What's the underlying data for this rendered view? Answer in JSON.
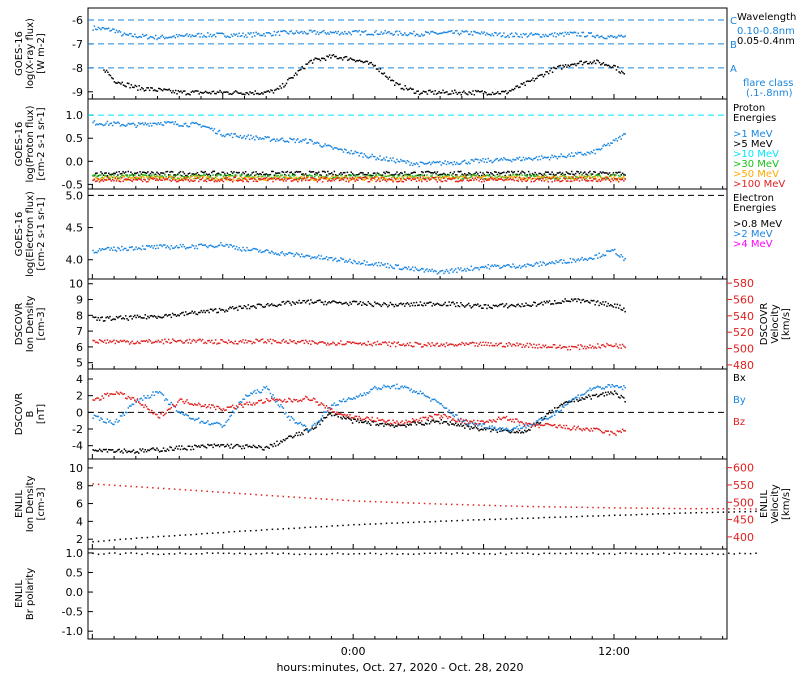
{
  "footer": {
    "xlabel": "hours:minutes, Oct. 27, 2020 - Oct. 28, 2020"
  },
  "colors": {
    "black": "#000000",
    "blue": "#1a86e0",
    "cyan": "#00e8ff",
    "green": "#17c017",
    "orange": "#ffaa00",
    "red": "#e02020",
    "magenta": "#ff00ff"
  },
  "chart_data": [
    {
      "id": "xray",
      "type": "scatter",
      "ylabel": [
        "GOES-16",
        "log(X-ray flux)",
        "[W m-2]"
      ],
      "ylim": [
        -9.3,
        -5.5
      ],
      "ticks": [
        -9,
        -8,
        -7,
        -6
      ],
      "tick_labels": [
        "-9",
        "-8",
        "-7",
        "-6"
      ],
      "legend_title": "Wavelength",
      "legend": [
        {
          "label": "0.10-0.8nm",
          "color": "#1a86e0"
        },
        {
          "label": "0.05-0.4nm",
          "color": "#000000"
        }
      ],
      "flare_class": {
        "title": "flare class",
        "range": "(.1-.8nm)",
        "levels": [
          {
            "label": "C",
            "value": -6
          },
          {
            "label": "B",
            "value": -7
          },
          {
            "label": "A",
            "value": -8
          }
        ]
      },
      "series": [
        {
          "color": "#1a86e0",
          "x": [
            -12,
            -11,
            -10.6,
            -9,
            -7,
            -5,
            -3,
            -1,
            1,
            3,
            5,
            7,
            9,
            10,
            11,
            12,
            12.5
          ],
          "y": [
            -6.3,
            -6.4,
            -6.6,
            -6.7,
            -6.6,
            -6.6,
            -6.5,
            -6.5,
            -6.5,
            -6.55,
            -6.5,
            -6.6,
            -6.6,
            -6.55,
            -6.6,
            -6.7,
            -6.7
          ]
        },
        {
          "color": "#000000",
          "x": [
            -11.5,
            -11,
            -10,
            -8,
            -6,
            -4,
            -3.5,
            -2,
            -1,
            0,
            1,
            2,
            3,
            4,
            5,
            6,
            7,
            8,
            9,
            10,
            11,
            12,
            12.5
          ],
          "y": [
            -8,
            -8.5,
            -8.8,
            -9,
            -9,
            -9,
            -8.9,
            -7.7,
            -7.5,
            -7.6,
            -7.9,
            -8.7,
            -9,
            -9,
            -9,
            -9,
            -9,
            -8.6,
            -8.1,
            -7.8,
            -7.7,
            -7.9,
            -8.3
          ]
        }
      ]
    },
    {
      "id": "proton",
      "type": "scatter",
      "ylabel": [
        "GOES-16",
        "log(Proton flux)",
        "[cm-2 s-1 sr-1]"
      ],
      "ylim": [
        -0.6,
        1.35
      ],
      "ticks": [
        -0.5,
        0,
        0.5,
        1
      ],
      "tick_labels": [
        "-0.5",
        "0.0",
        "0.5",
        "1.0"
      ],
      "ref_line": {
        "value": 1.0,
        "color": "#00e8ff"
      },
      "legend_title": "Proton Energies",
      "legend": [
        {
          "label": ">1 MeV",
          "color": "#1a86e0"
        },
        {
          "label": ">5 MeV",
          "color": "#000000"
        },
        {
          "label": ">10 MeV",
          "color": "#00e8ff"
        },
        {
          "label": ">30 MeV",
          "color": "#17c017"
        },
        {
          "label": ">50 MeV",
          "color": "#ffaa00"
        },
        {
          "label": ">100 MeV",
          "color": "#e02020"
        }
      ],
      "series": [
        {
          "color": "#1a86e0",
          "x": [
            -12,
            -10,
            -9,
            -7,
            -6,
            -4,
            -2,
            -1,
            1,
            3,
            5,
            7,
            9,
            11,
            12,
            12.5
          ],
          "y": [
            0.85,
            0.8,
            0.85,
            0.8,
            0.6,
            0.5,
            0.45,
            0.3,
            0.1,
            -0.05,
            0,
            0.05,
            0.1,
            0.2,
            0.45,
            0.6
          ]
        },
        {
          "color": "#000000",
          "x": [
            -12,
            12.5
          ],
          "y": [
            -0.25,
            -0.25
          ]
        },
        {
          "color": "#17c017",
          "x": [
            -12,
            12.5
          ],
          "y": [
            -0.32,
            -0.32
          ]
        },
        {
          "color": "#ffaa00",
          "x": [
            -12,
            12.5
          ],
          "y": [
            -0.35,
            -0.35
          ]
        },
        {
          "color": "#e02020",
          "x": [
            -12,
            12.5
          ],
          "y": [
            -0.38,
            -0.38
          ]
        }
      ]
    },
    {
      "id": "electron",
      "type": "scatter",
      "ylabel": [
        "GOES-16",
        "log(Electron flux)",
        "[cm-2 s-1 sr-1]"
      ],
      "ylim": [
        3.7,
        5.1
      ],
      "ticks": [
        4,
        4.5,
        5
      ],
      "tick_labels": [
        "4.0",
        "4.5",
        "5.0"
      ],
      "ref_line": {
        "value": 5.0,
        "color": "#000000"
      },
      "legend_title": "Electron Energies",
      "legend": [
        {
          "label": ">0.8 MeV",
          "color": "#000000"
        },
        {
          "label": ">2 MeV",
          "color": "#1a86e0"
        },
        {
          "label": ">4 MeV",
          "color": "#ff00ff"
        }
      ],
      "series": [
        {
          "color": "#1a86e0",
          "x": [
            -12,
            -10,
            -7,
            -6,
            -5,
            -3,
            -1,
            1,
            3,
            4,
            6,
            8,
            10,
            11,
            12,
            12.5
          ],
          "y": [
            4.15,
            4.2,
            4.22,
            4.25,
            4.17,
            4.1,
            4.02,
            3.95,
            3.85,
            3.82,
            3.9,
            3.92,
            4.0,
            4.05,
            4.15,
            4.0
          ]
        }
      ]
    },
    {
      "id": "dscovr_density",
      "type": "scatter",
      "ylabel": [
        "DSCOVR",
        "Ion Density",
        "[cm-3]"
      ],
      "ylim": [
        4.6,
        10.3
      ],
      "ticks": [
        5,
        6,
        7,
        8,
        9,
        10
      ],
      "tick_labels": [
        "5",
        "6",
        "7",
        "8",
        "9",
        "10"
      ],
      "ylabel2": [
        "DSCOVR",
        "Velocity",
        "[km/s]"
      ],
      "ylim2": [
        475,
        585
      ],
      "ticks2": [
        480,
        500,
        520,
        540,
        560,
        580
      ],
      "tick_labels2": [
        "480",
        "500",
        "520",
        "540",
        "560",
        "580"
      ],
      "series": [
        {
          "axis": 1,
          "color": "#000000",
          "x": [
            -12,
            -10,
            -8,
            -6,
            -4,
            -2,
            0,
            2,
            4,
            6,
            8,
            10,
            12,
            12.5
          ],
          "y": [
            7.8,
            7.9,
            8.1,
            8.4,
            8.7,
            8.9,
            8.8,
            8.7,
            8.8,
            8.6,
            8.7,
            9.0,
            8.7,
            8.4
          ]
        },
        {
          "axis": 2,
          "color": "#e02020",
          "x": [
            -12,
            -10,
            -8,
            -6,
            -4,
            -2,
            0,
            2,
            4,
            6,
            8,
            10,
            12,
            12.5
          ],
          "y": [
            510,
            509,
            510,
            509,
            510,
            508,
            508,
            506,
            505,
            506,
            505,
            502,
            505,
            503
          ]
        }
      ]
    },
    {
      "id": "dscovr_b",
      "type": "scatter",
      "ylabel": [
        "DSCOVR",
        "B",
        "[nT]"
      ],
      "ylim": [
        -5.6,
        5.2
      ],
      "ticks": [
        -4,
        -2,
        0,
        2,
        4
      ],
      "tick_labels": [
        "-4",
        "-2",
        "0",
        "2",
        "4"
      ],
      "ref_line": {
        "value": 0,
        "color": "#000000"
      },
      "legend": [
        {
          "label": "Bx",
          "color": "#000000"
        },
        {
          "label": "By",
          "color": "#1a86e0"
        },
        {
          "label": "Bz",
          "color": "#e02020"
        }
      ],
      "series": [
        {
          "color": "#000000",
          "x": [
            -12,
            -10,
            -8,
            -6,
            -4,
            -3,
            -2,
            -1,
            0,
            2,
            4,
            6,
            8,
            9,
            10,
            11,
            12,
            12.5
          ],
          "y": [
            -4.3,
            -4.6,
            -4.2,
            -3.9,
            -4.2,
            -3.0,
            -2.0,
            0,
            -1,
            -1.5,
            -1.0,
            -2.0,
            -2.2,
            0,
            1.5,
            2.0,
            2.5,
            1.5
          ]
        },
        {
          "color": "#1a86e0",
          "x": [
            -12,
            -11,
            -10,
            -9,
            -8,
            -7,
            -6,
            -5,
            -4,
            -3,
            -2,
            -1,
            0,
            1,
            2,
            3,
            4,
            5,
            6,
            7,
            8,
            9,
            10,
            11,
            12,
            12.5
          ],
          "y": [
            -0.5,
            -1.2,
            1.5,
            2.5,
            0,
            -1,
            -1.5,
            2,
            3,
            -0.5,
            -2,
            1,
            1.8,
            3,
            3.2,
            2.5,
            1,
            -1,
            -1.5,
            -2,
            -1.5,
            -0.5,
            1.5,
            3,
            3.2,
            3
          ]
        },
        {
          "color": "#e02020",
          "x": [
            -12,
            -11,
            -10,
            -9,
            -8,
            -7,
            -6,
            -5,
            -4,
            -3,
            -2,
            -1,
            0,
            1,
            2,
            3,
            4,
            5,
            6,
            7,
            8,
            9,
            10,
            11,
            12,
            12.5
          ],
          "y": [
            1.5,
            2.5,
            1.5,
            -0.5,
            1.5,
            1,
            0.5,
            1,
            1.5,
            1.5,
            1.8,
            0.2,
            -0.5,
            -0.8,
            -1.2,
            -0.8,
            -0.3,
            -1,
            -1.2,
            -0.5,
            -1.5,
            -1.5,
            -1.8,
            -2,
            -2.5,
            -2
          ]
        }
      ]
    },
    {
      "id": "enlil_density",
      "type": "scatter",
      "ylabel": [
        "ENLIL",
        "Ion Density",
        "[cm-3]"
      ],
      "ylim": [
        0.9,
        11
      ],
      "ticks": [
        2,
        4,
        6,
        8,
        10
      ],
      "tick_labels": [
        "2",
        "4",
        "6",
        "8",
        "10"
      ],
      "ylabel2": [
        "ENLIL",
        "Velocity",
        "[km/s]"
      ],
      "ylim2": [
        365,
        625
      ],
      "ticks2": [
        400,
        450,
        500,
        550,
        600
      ],
      "tick_labels2": [
        "400",
        "450",
        "500",
        "550",
        "600"
      ],
      "series": [
        {
          "axis": 1,
          "color": "#000000",
          "x": [
            -12,
            -10,
            -5,
            0,
            5,
            10,
            15,
            18.5
          ],
          "y": [
            1.8,
            2.2,
            3.0,
            3.7,
            4.2,
            4.6,
            5.0,
            5.2
          ]
        },
        {
          "axis": 2,
          "color": "#e02020",
          "x": [
            -12,
            -10,
            -7,
            -4,
            0,
            4,
            8,
            12,
            15,
            18.5
          ],
          "y": [
            555,
            547,
            535,
            522,
            506,
            497,
            490,
            486,
            484,
            483
          ]
        }
      ]
    },
    {
      "id": "enlil_polarity",
      "type": "scatter",
      "ylabel": [
        "ENLIL",
        "Br polarity"
      ],
      "ylim": [
        -1.2,
        1.1
      ],
      "ticks": [
        -1,
        -0.5,
        0,
        0.5,
        1
      ],
      "tick_labels": [
        "-1.0",
        "-0.5",
        "0.0",
        "0.5",
        "1.0"
      ],
      "x_ticks": [
        0,
        12
      ],
      "x_tick_labels": [
        "0:00",
        "12:00"
      ],
      "series": [
        {
          "color": "#000000",
          "x": [
            -12,
            18.5
          ],
          "y": [
            1,
            1
          ]
        }
      ]
    }
  ]
}
